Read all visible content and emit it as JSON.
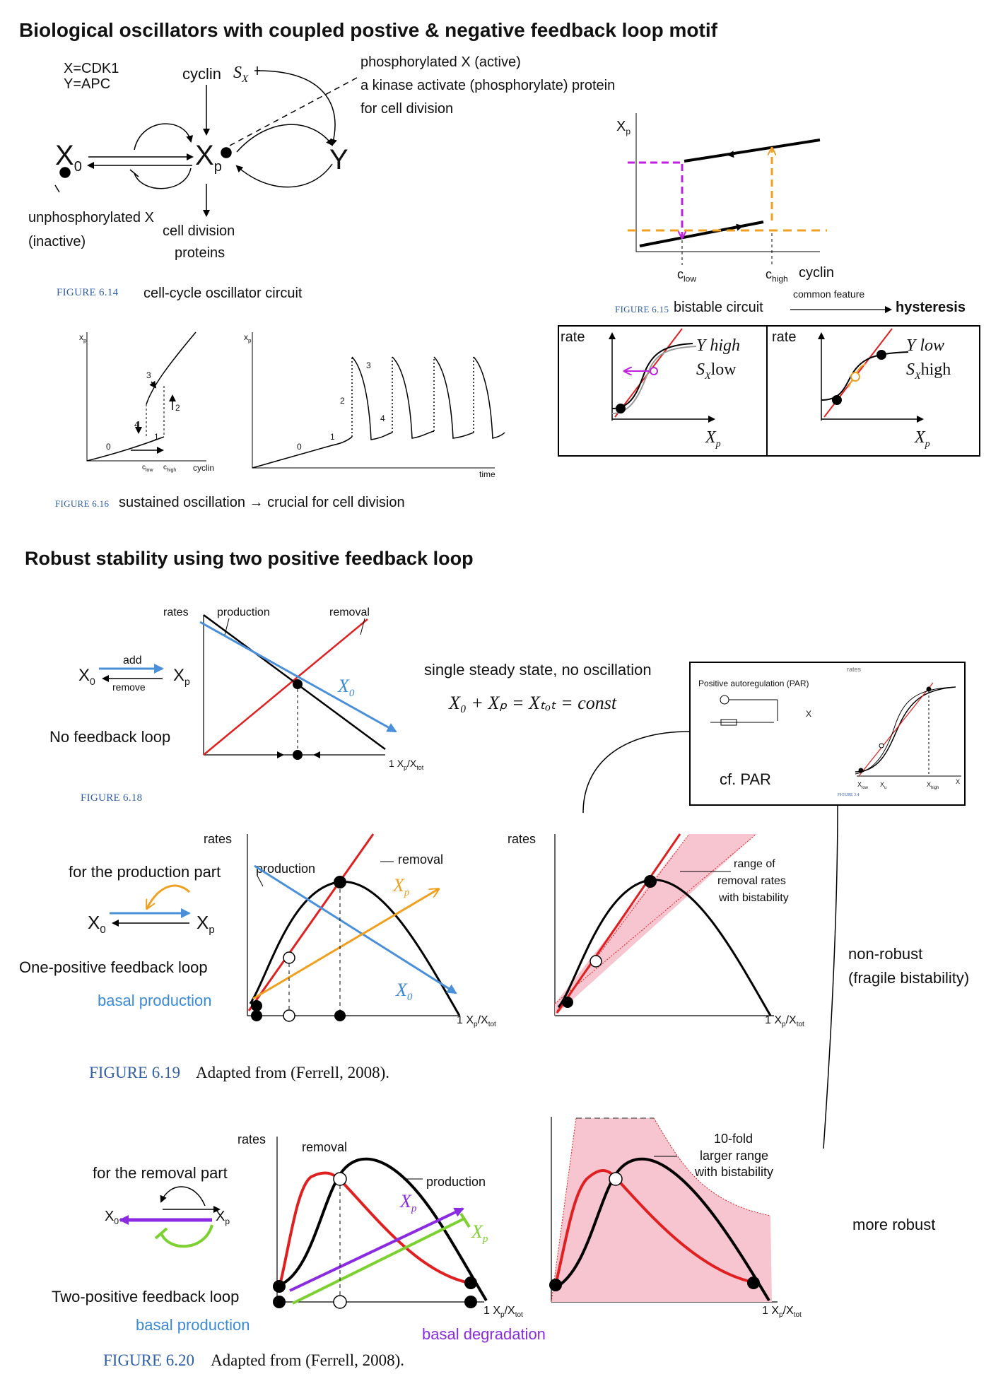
{
  "section1": {
    "title": "Biological oscillators with coupled postive & negative feedback loop motif",
    "circuit": {
      "defs": [
        "X=CDK1",
        "Y=APC"
      ],
      "cyclin": "cyclin",
      "sx_label": "S",
      "sx_sub": "X",
      "x0": "X",
      "x0_sub": "0",
      "xp": "X",
      "xp_sub": "p",
      "y": "Y",
      "phospho_notes": [
        "phosphorylated X (active)",
        "a kinase activate (phosphorylate) protein",
        "for cell division"
      ],
      "unphospho_notes": [
        "unphosphorylated X",
        "(inactive)"
      ],
      "cell_div": [
        "cell division",
        "proteins"
      ],
      "fig_id": "FIGURE 6.14",
      "caption": "cell-cycle oscillator circuit"
    },
    "hysteresis": {
      "ylabel": "X",
      "ylabel_sub": "p",
      "clow": "c",
      "clow_sub": "low",
      "chigh": "c",
      "chigh_sub": "high",
      "xlabel": "cyclin",
      "fig_id": "FIGURE 6.15",
      "caption": "bistable circuit",
      "common": "common feature",
      "result": "hysteresis"
    },
    "rate_panels": [
      {
        "ylabel": "rate",
        "line1": "Y high",
        "line2_a": "S",
        "line2_sub": "X",
        "line2_b": "low",
        "xlabel": "X",
        "xlabel_sub": "p"
      },
      {
        "ylabel": "rate",
        "line1": "Y low",
        "line2_a": "S",
        "line2_sub": "X",
        "line2_b": "high",
        "xlabel": "X",
        "xlabel_sub": "p"
      }
    ],
    "oscillation": {
      "ylab1": "x",
      "ylab1_sub": "p",
      "ylab2": "x",
      "ylab2_sub": "p",
      "nums1": [
        "0",
        "1",
        "2",
        "3",
        "4"
      ],
      "clow": "c",
      "clow_sub": "low",
      "chigh": "c",
      "chigh_sub": "high",
      "xlab1": "cyclin",
      "nums2": [
        "0",
        "1",
        "2",
        "3",
        "4"
      ],
      "xlab2": "time",
      "fig_id": "FIGURE 6.16",
      "caption": "sustained oscillation → crucial for cell division"
    }
  },
  "section2": {
    "title": "Robust stability using two positive feedback loop",
    "fig18": {
      "add": "add",
      "remove": "remove",
      "x0": "X",
      "x0_sub": "0",
      "xp": "X",
      "xp_sub": "p",
      "no_feedback": "No feedback loop",
      "rates": "rates",
      "production": "production",
      "removal": "removal",
      "x0_line": "X",
      "x0_line_sub": "0",
      "axis_one": "1",
      "axis_label": "X",
      "axis_label_sub": "p",
      "axis_label_slash": "/X",
      "axis_label_sub2": "tot",
      "fig_id": "FIGURE 6.18",
      "single_ss": "single steady state, no oscillation",
      "equation": "X₀ + Xₚ = Xₜₒₜ = const"
    },
    "par_box": {
      "rates": "rates",
      "title": "Positive autoregulation (PAR)",
      "x": "X",
      "cf": "cf. PAR",
      "xlow": "X",
      "xlow_sub": "low",
      "xu": "X",
      "xu_sub": "u",
      "xhigh": "X",
      "xhigh_sub": "high",
      "xaxis": "X",
      "fig_ref": "FIGURE 3.4"
    },
    "fig19": {
      "production_part": "for the production part",
      "x0": "X",
      "x0_sub": "0",
      "xp": "X",
      "xp_sub": "p",
      "one_pos": "One-positive feedback loop",
      "basal": "basal production",
      "rates1": "rates",
      "production": "production",
      "removal": "removal",
      "xp_line": "X",
      "xp_line_sub": "p",
      "x0_line": "X",
      "x0_line_sub": "0",
      "rates2": "rates",
      "range_note": [
        "range of",
        "removal rates",
        "with bistability"
      ],
      "axis_one": "1",
      "non_robust": [
        "non-robust",
        "(fragile bistability)"
      ],
      "fig_id": "FIGURE 6.19",
      "caption": "Adapted from (Ferrell, 2008)."
    },
    "fig20": {
      "removal_part": "for the removal part",
      "x0": "X",
      "x0_sub": "0",
      "xp": "X",
      "xp_sub": "p",
      "two_pos": "Two-positive feedback loop",
      "basal_prod": "basal production",
      "basal_deg": "basal degradation",
      "rates": "rates",
      "removal": "removal",
      "production": "production",
      "xp_purple": "X",
      "xp_purple_sub": "p",
      "xp_green": "X",
      "xp_green_sub": "p",
      "fold_note": [
        "10-fold",
        "larger range",
        "with bistability"
      ],
      "axis_one": "1",
      "more_robust": "more robust",
      "fig_id": "FIGURE 6.20",
      "caption": "Adapted from (Ferrell, 2008)."
    }
  },
  "colors": {
    "figure_blue": "#2f5fa8",
    "red": "#e02020",
    "blue_line": "#4a90d9",
    "orange": "#f0a020",
    "magenta": "#c020e0",
    "purple": "#8a2be2",
    "green": "#7cd030",
    "pink_fill": "#f7c5d0"
  }
}
